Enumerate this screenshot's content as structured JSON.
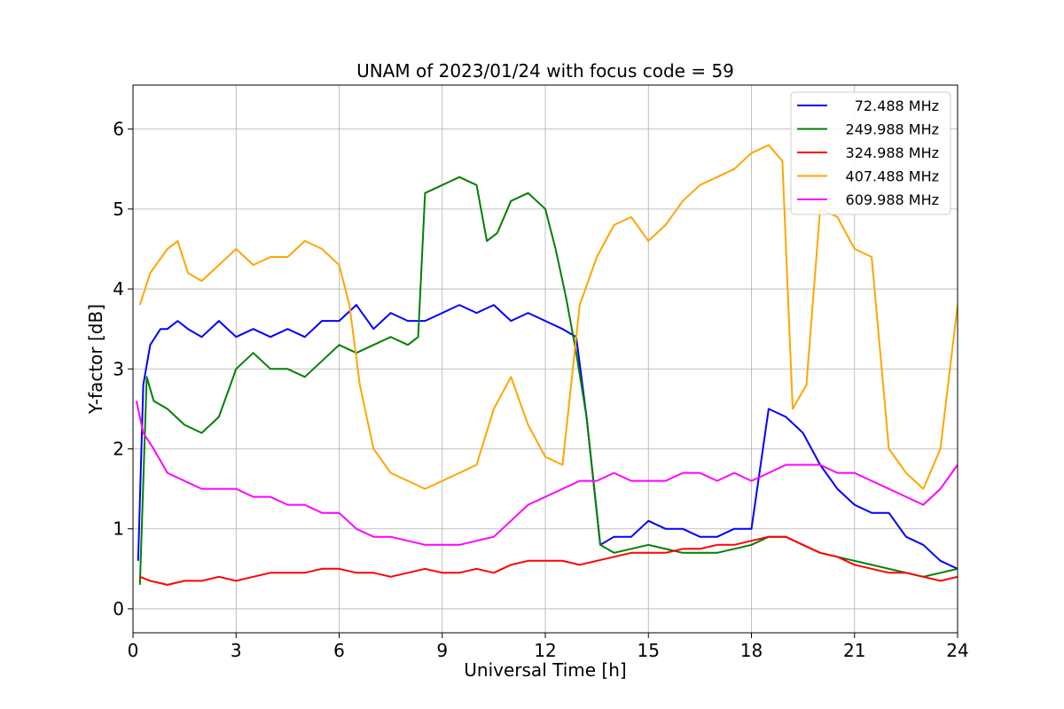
{
  "chart_data": {
    "type": "line",
    "title": "UNAM of 2023/01/24 with focus code = 59",
    "xlabel": "Universal Time [h]",
    "ylabel": "Y-factor [dB]",
    "xlim": [
      0,
      24
    ],
    "ylim": [
      -0.3,
      6.55
    ],
    "xticks": [
      "0",
      "3",
      "6",
      "9",
      "12",
      "15",
      "18",
      "21",
      "24"
    ],
    "yticks": [
      "0",
      "1",
      "2",
      "3",
      "4",
      "5",
      "6"
    ],
    "grid": true,
    "legend_position": "top-right",
    "series": [
      {
        "name": "  72.488 MHz",
        "color": "#0000ff",
        "x": [
          0.15,
          0.3,
          0.5,
          0.8,
          1.0,
          1.3,
          1.6,
          2.0,
          2.5,
          3.0,
          3.5,
          4.0,
          4.5,
          5.0,
          5.5,
          6.0,
          6.5,
          7.0,
          7.5,
          8.0,
          8.5,
          9.0,
          9.5,
          10.0,
          10.5,
          11.0,
          11.5,
          12.0,
          12.5,
          12.9,
          13.2,
          13.6,
          14.0,
          14.5,
          15.0,
          15.5,
          16.0,
          16.5,
          17.0,
          17.5,
          18.0,
          18.5,
          19.0,
          19.5,
          20.0,
          20.5,
          21.0,
          21.5,
          22.0,
          22.5,
          23.0,
          23.5,
          24.0
        ],
        "y": [
          0.6,
          2.8,
          3.3,
          3.5,
          3.5,
          3.6,
          3.5,
          3.4,
          3.6,
          3.4,
          3.5,
          3.4,
          3.5,
          3.4,
          3.6,
          3.6,
          3.8,
          3.5,
          3.7,
          3.6,
          3.6,
          3.7,
          3.8,
          3.7,
          3.8,
          3.6,
          3.7,
          3.6,
          3.5,
          3.4,
          2.4,
          0.8,
          0.9,
          0.9,
          1.1,
          1.0,
          1.0,
          0.9,
          0.9,
          1.0,
          1.0,
          2.5,
          2.4,
          2.2,
          1.8,
          1.5,
          1.3,
          1.2,
          1.2,
          0.9,
          0.8,
          0.6,
          0.5
        ]
      },
      {
        "name": "249.988 MHz",
        "color": "#008000",
        "x": [
          0.2,
          0.4,
          0.6,
          1.0,
          1.5,
          2.0,
          2.5,
          3.0,
          3.5,
          4.0,
          4.5,
          5.0,
          5.5,
          6.0,
          6.5,
          7.0,
          7.5,
          8.0,
          8.3,
          8.5,
          9.0,
          9.5,
          10.0,
          10.3,
          10.6,
          11.0,
          11.5,
          12.0,
          12.3,
          12.6,
          12.9,
          13.2,
          13.6,
          14.0,
          15.0,
          16.0,
          17.0,
          18.0,
          18.5,
          19.0,
          19.5,
          20.0,
          21.0,
          22.0,
          23.0,
          24.0
        ],
        "y": [
          0.3,
          2.9,
          2.6,
          2.5,
          2.3,
          2.2,
          2.4,
          3.0,
          3.2,
          3.0,
          3.0,
          2.9,
          3.1,
          3.3,
          3.2,
          3.3,
          3.4,
          3.3,
          3.4,
          5.2,
          5.3,
          5.4,
          5.3,
          4.6,
          4.7,
          5.1,
          5.2,
          5.0,
          4.5,
          3.9,
          3.2,
          2.4,
          0.8,
          0.7,
          0.8,
          0.7,
          0.7,
          0.8,
          0.9,
          0.9,
          0.8,
          0.7,
          0.6,
          0.5,
          0.4,
          0.5
        ]
      },
      {
        "name": "324.988 MHz",
        "color": "#ff0000",
        "x": [
          0.2,
          0.5,
          1.0,
          1.5,
          2.0,
          2.5,
          3.0,
          3.5,
          4.0,
          4.5,
          5.0,
          5.5,
          6.0,
          6.5,
          7.0,
          7.5,
          8.0,
          8.5,
          9.0,
          9.5,
          10.0,
          10.5,
          11.0,
          11.5,
          12.0,
          12.5,
          13.0,
          13.5,
          14.0,
          14.5,
          15.0,
          15.5,
          16.0,
          16.5,
          17.0,
          17.5,
          18.0,
          18.5,
          19.0,
          19.5,
          20.0,
          20.5,
          21.0,
          21.5,
          22.0,
          22.5,
          23.0,
          23.5,
          24.0
        ],
        "y": [
          0.4,
          0.35,
          0.3,
          0.35,
          0.35,
          0.4,
          0.35,
          0.4,
          0.45,
          0.45,
          0.45,
          0.5,
          0.5,
          0.45,
          0.45,
          0.4,
          0.45,
          0.5,
          0.45,
          0.45,
          0.5,
          0.45,
          0.55,
          0.6,
          0.6,
          0.6,
          0.55,
          0.6,
          0.65,
          0.7,
          0.7,
          0.7,
          0.75,
          0.75,
          0.8,
          0.8,
          0.85,
          0.9,
          0.9,
          0.8,
          0.7,
          0.65,
          0.55,
          0.5,
          0.45,
          0.45,
          0.4,
          0.35,
          0.4
        ]
      },
      {
        "name": "407.488 MHz",
        "color": "#ffa500",
        "x": [
          0.2,
          0.5,
          1.0,
          1.3,
          1.6,
          2.0,
          2.5,
          3.0,
          3.5,
          4.0,
          4.5,
          5.0,
          5.5,
          6.0,
          6.3,
          6.6,
          7.0,
          7.5,
          8.0,
          8.5,
          9.0,
          9.5,
          10.0,
          10.5,
          11.0,
          11.5,
          12.0,
          12.5,
          13.0,
          13.5,
          14.0,
          14.5,
          15.0,
          15.5,
          16.0,
          16.5,
          17.0,
          17.5,
          18.0,
          18.5,
          18.9,
          19.2,
          19.6,
          20.0,
          20.5,
          21.0,
          21.5,
          22.0,
          22.5,
          23.0,
          23.5,
          24.0
        ],
        "y": [
          3.8,
          4.2,
          4.5,
          4.6,
          4.2,
          4.1,
          4.3,
          4.5,
          4.3,
          4.4,
          4.4,
          4.6,
          4.5,
          4.3,
          3.8,
          2.8,
          2.0,
          1.7,
          1.6,
          1.5,
          1.6,
          1.7,
          1.8,
          2.5,
          2.9,
          2.3,
          1.9,
          1.8,
          3.8,
          4.4,
          4.8,
          4.9,
          4.6,
          4.8,
          5.1,
          5.3,
          5.4,
          5.5,
          5.7,
          5.8,
          5.6,
          2.5,
          2.8,
          5.0,
          4.9,
          4.5,
          4.4,
          2.0,
          1.7,
          1.5,
          2.0,
          3.8
        ]
      },
      {
        "name": "609.988 MHz",
        "color": "#ff00ff",
        "x": [
          0.1,
          0.3,
          0.6,
          1.0,
          1.5,
          2.0,
          2.5,
          3.0,
          3.5,
          4.0,
          4.5,
          5.0,
          5.5,
          6.0,
          6.5,
          7.0,
          7.5,
          8.0,
          8.5,
          9.0,
          9.5,
          10.0,
          10.5,
          11.0,
          11.5,
          12.0,
          12.5,
          13.0,
          13.5,
          14.0,
          14.5,
          15.0,
          15.5,
          16.0,
          16.5,
          17.0,
          17.5,
          18.0,
          18.5,
          19.0,
          19.5,
          20.0,
          20.5,
          21.0,
          21.5,
          22.0,
          22.5,
          23.0,
          23.5,
          24.0
        ],
        "y": [
          2.6,
          2.2,
          2.0,
          1.7,
          1.6,
          1.5,
          1.5,
          1.5,
          1.4,
          1.4,
          1.3,
          1.3,
          1.2,
          1.2,
          1.0,
          0.9,
          0.9,
          0.85,
          0.8,
          0.8,
          0.8,
          0.85,
          0.9,
          1.1,
          1.3,
          1.4,
          1.5,
          1.6,
          1.6,
          1.7,
          1.6,
          1.6,
          1.6,
          1.7,
          1.7,
          1.6,
          1.7,
          1.6,
          1.7,
          1.8,
          1.8,
          1.8,
          1.7,
          1.7,
          1.6,
          1.5,
          1.4,
          1.3,
          1.5,
          1.8
        ]
      }
    ]
  }
}
